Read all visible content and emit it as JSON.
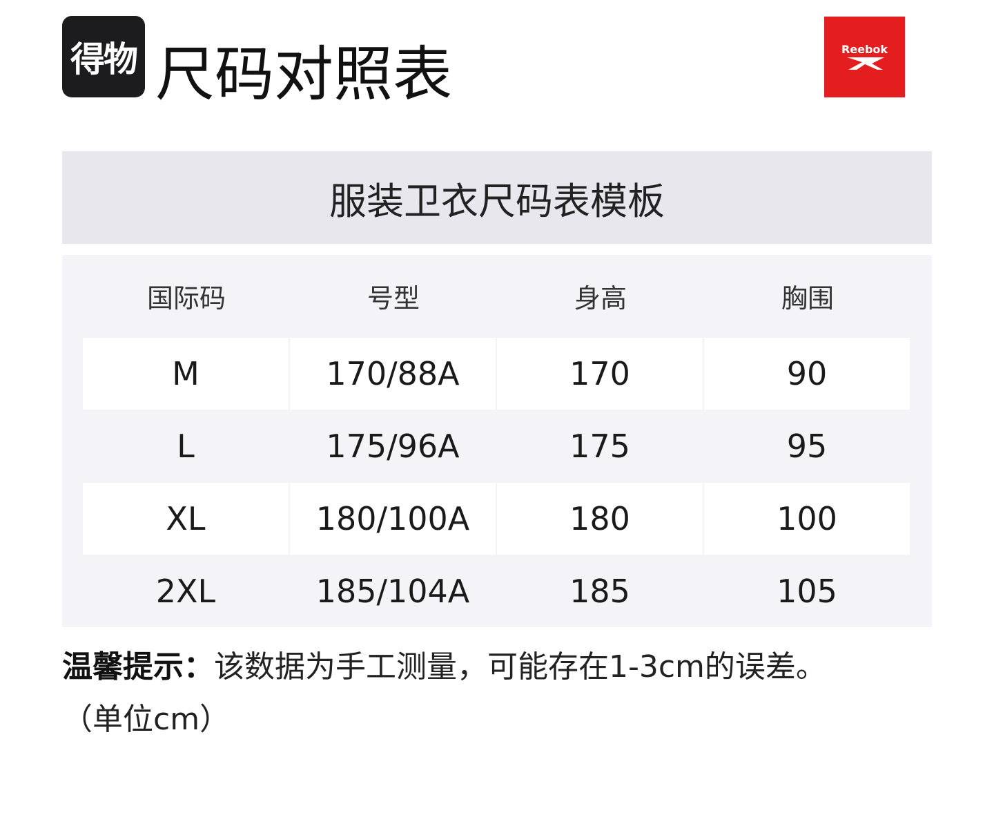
{
  "header": {
    "app_logo_text": "得物",
    "title": "尺码对照表",
    "brand_logo_text": "Reebok",
    "brand_color": "#e41e1e"
  },
  "table": {
    "title": "服装卫衣尺码表模板",
    "columns": [
      "国际码",
      "号型",
      "身高",
      "胸围"
    ],
    "rows": [
      [
        "M",
        "170/88A",
        "170",
        "90"
      ],
      [
        "L",
        "175/96A",
        "175",
        "95"
      ],
      [
        "XL",
        "180/100A",
        "180",
        "100"
      ],
      [
        "2XL",
        "185/104A",
        "185",
        "105"
      ]
    ]
  },
  "note": {
    "label": "温馨提示：",
    "text": "该数据为手工测量，可能存在1-3cm的误差。",
    "unit": "（单位cm）"
  }
}
